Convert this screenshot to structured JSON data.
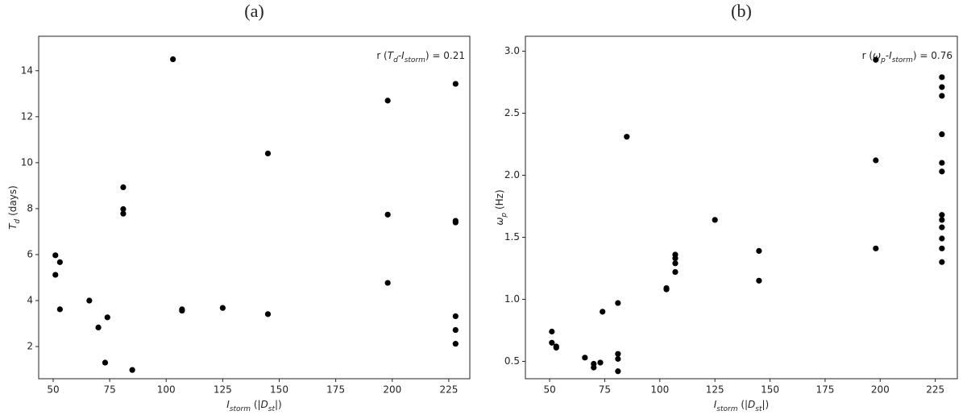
{
  "chart_data": [
    {
      "type": "scatter",
      "title": "(a)",
      "xlabel": [
        {
          "text": "I",
          "italic": true
        },
        {
          "text": "storm",
          "italic": true,
          "sub": true
        },
        {
          "text": " (|"
        },
        {
          "text": "D",
          "italic": true
        },
        {
          "text": "st",
          "italic": true,
          "sub": true
        },
        {
          "text": "|)"
        }
      ],
      "ylabel": [
        {
          "text": "T",
          "italic": true
        },
        {
          "text": "d",
          "italic": true,
          "sub": true
        },
        {
          "text": " (days)"
        }
      ],
      "annotation": [
        {
          "text": "r ("
        },
        {
          "text": "T",
          "italic": true
        },
        {
          "text": "d",
          "italic": true,
          "sub": true
        },
        {
          "text": "-"
        },
        {
          "text": "I",
          "italic": true
        },
        {
          "text": "storm",
          "italic": true,
          "sub": true
        },
        {
          "text": ") = 0.21"
        }
      ],
      "color": "#000000",
      "x": [
        51,
        51,
        53,
        53,
        66,
        70,
        73,
        74,
        81,
        81,
        81,
        85,
        103,
        107,
        107,
        125,
        145,
        145,
        198,
        198,
        198,
        228,
        228,
        228,
        228,
        228,
        228
      ],
      "y": [
        5.97,
        5.12,
        5.67,
        3.62,
        4.0,
        2.83,
        1.3,
        3.27,
        8.93,
        7.98,
        7.78,
        0.98,
        14.5,
        3.62,
        3.56,
        3.68,
        10.4,
        3.41,
        12.7,
        7.74,
        4.77,
        13.43,
        7.47,
        7.4,
        3.32,
        2.72,
        2.12
      ],
      "xlim": [
        43.6,
        234.3
      ],
      "xticks": [
        50,
        75,
        100,
        125,
        150,
        175,
        200,
        225
      ],
      "ylim": [
        0.6,
        15.5
      ],
      "yticks": [
        2,
        4,
        6,
        8,
        10,
        12,
        14
      ]
    },
    {
      "type": "scatter",
      "title": "(b)",
      "xlabel": [
        {
          "text": "I",
          "italic": true
        },
        {
          "text": "storm",
          "italic": true,
          "sub": true
        },
        {
          "text": " (|"
        },
        {
          "text": "D",
          "italic": true
        },
        {
          "text": "st",
          "italic": true,
          "sub": true
        },
        {
          "text": "|)"
        }
      ],
      "ylabel": [
        {
          "text": "ω",
          "italic": true
        },
        {
          "text": "p",
          "italic": true,
          "sub": true
        },
        {
          "text": " (Hz)"
        }
      ],
      "annotation": [
        {
          "text": "r ("
        },
        {
          "text": "ω",
          "italic": true
        },
        {
          "text": "p",
          "italic": true,
          "sub": true
        },
        {
          "text": "-"
        },
        {
          "text": "I",
          "italic": true
        },
        {
          "text": "storm",
          "italic": true,
          "sub": true
        },
        {
          "text": ") = 0.76"
        }
      ],
      "color": "#000000",
      "x": [
        51,
        51,
        53,
        53,
        66,
        70,
        70,
        73,
        74,
        81,
        81,
        81,
        81,
        85,
        103,
        103,
        107,
        107,
        107,
        107,
        125,
        145,
        145,
        198,
        198,
        198,
        228,
        228,
        228,
        228,
        228,
        228,
        228,
        228,
        228,
        228,
        228,
        228
      ],
      "y": [
        0.74,
        0.65,
        0.62,
        0.61,
        0.53,
        0.48,
        0.45,
        0.49,
        0.9,
        0.97,
        0.56,
        0.52,
        0.42,
        2.31,
        1.09,
        1.08,
        1.36,
        1.33,
        1.29,
        1.22,
        1.64,
        1.39,
        1.15,
        2.93,
        2.12,
        1.41,
        2.79,
        2.71,
        2.64,
        2.33,
        2.1,
        2.03,
        1.68,
        1.64,
        1.58,
        1.49,
        1.41,
        1.3
      ],
      "xlim": [
        39,
        235
      ],
      "xticks": [
        50,
        75,
        100,
        125,
        150,
        175,
        200,
        225
      ],
      "ylim": [
        0.36,
        3.12
      ],
      "yticks": [
        0.5,
        {
          "value": 1.0,
          "label": "1.0"
        },
        1.5,
        {
          "value": 2.0,
          "label": "2.0"
        },
        2.5,
        {
          "value": 3.0,
          "label": "3.0"
        }
      ]
    }
  ]
}
